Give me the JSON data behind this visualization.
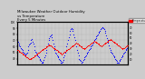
{
  "title": "Milwaukee Weather Outdoor Humidity",
  "title2": "vs Temperature",
  "title3": "Every 5 Minutes",
  "title_fontsize": 2.8,
  "background_color": "#cccccc",
  "plot_bg_color": "#cccccc",
  "humidity_color": "#0000ff",
  "temp_color": "#ff0000",
  "legend_humidity_label": "Humidity",
  "legend_temp_label": "Temperature",
  "marker_size": 0.7,
  "ylim_left": [
    30,
    100
  ],
  "ylim_right": [
    0,
    80
  ],
  "yticks_left": [
    40,
    50,
    60,
    70,
    80,
    90,
    100
  ],
  "yticks_right": [
    10,
    20,
    30,
    40,
    50,
    60,
    70
  ],
  "humidity_data": [
    72,
    68,
    65,
    62,
    60,
    58,
    56,
    54,
    52,
    50,
    48,
    47,
    46,
    48,
    50,
    55,
    60,
    63,
    65,
    67,
    70,
    72,
    68,
    65,
    60,
    55,
    52,
    50,
    48,
    46,
    44,
    42,
    40,
    38,
    36,
    34,
    33,
    35,
    38,
    42,
    46,
    50,
    55,
    60,
    65,
    70,
    74,
    76,
    78,
    80,
    75,
    70,
    65,
    60,
    55,
    50,
    48,
    46,
    44,
    42,
    40,
    38,
    36,
    34,
    33,
    35,
    38,
    42,
    46,
    50,
    55,
    60,
    65,
    70,
    75,
    80,
    85,
    88,
    90,
    88,
    85,
    80,
    75,
    70,
    65,
    60,
    55,
    50,
    45,
    40,
    38,
    36,
    34,
    33,
    35,
    38,
    40,
    42,
    44,
    46,
    48,
    50,
    52,
    54,
    56,
    58,
    60,
    62,
    64,
    66,
    68,
    70,
    72,
    74,
    76,
    78,
    80,
    82,
    84,
    86,
    88,
    90,
    91,
    92,
    90,
    88,
    85,
    82,
    78,
    74,
    70,
    66,
    62,
    58,
    55,
    52,
    50,
    48,
    46,
    44,
    42,
    40,
    38,
    36,
    34,
    33,
    34,
    36,
    38,
    40,
    42,
    44,
    46,
    48,
    50,
    52,
    54,
    56,
    58,
    60
  ],
  "temp_data": [
    28,
    27,
    26,
    25,
    24,
    23,
    22,
    21,
    20,
    19,
    18,
    17,
    16,
    15,
    14,
    13,
    12,
    11,
    10,
    11,
    12,
    13,
    14,
    15,
    16,
    17,
    18,
    19,
    20,
    21,
    22,
    23,
    24,
    25,
    26,
    27,
    28,
    29,
    30,
    31,
    32,
    33,
    34,
    35,
    36,
    37,
    38,
    37,
    36,
    35,
    34,
    33,
    32,
    31,
    30,
    29,
    28,
    27,
    26,
    25,
    24,
    23,
    22,
    21,
    20,
    21,
    22,
    23,
    24,
    25,
    26,
    27,
    28,
    29,
    30,
    31,
    32,
    33,
    34,
    35,
    36,
    37,
    38,
    39,
    40,
    41,
    40,
    39,
    38,
    37,
    36,
    35,
    34,
    33,
    32,
    31,
    30,
    31,
    32,
    33,
    34,
    35,
    36,
    37,
    38,
    39,
    40,
    41,
    42,
    43,
    44,
    45,
    44,
    43,
    42,
    41,
    40,
    39,
    38,
    37,
    36,
    35,
    36,
    37,
    38,
    39,
    40,
    41,
    42,
    43,
    44,
    45,
    46,
    47,
    48,
    47,
    46,
    45,
    44,
    43,
    42,
    41,
    40,
    39,
    38,
    37,
    36,
    35,
    34,
    33,
    32,
    31,
    30,
    31,
    32,
    33,
    34,
    35,
    36,
    37
  ]
}
